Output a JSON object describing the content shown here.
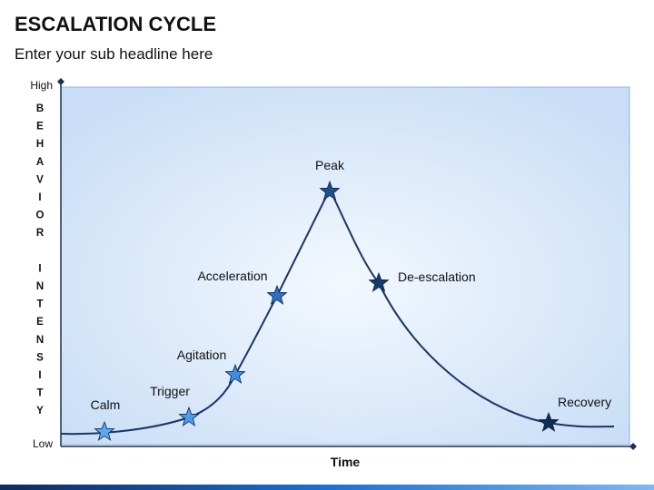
{
  "header": {
    "title": "ESCALATION CYCLE",
    "subtitle": "Enter your sub headline here"
  },
  "axes": {
    "y_high": "High",
    "y_low": "Low",
    "y_label": "BEHAVIOR INTENSITY",
    "x_label": "Time"
  },
  "stages": [
    {
      "label": "Calm",
      "color": "#5aaaf2"
    },
    {
      "label": "Trigger",
      "color": "#4c9ceb"
    },
    {
      "label": "Agitation",
      "color": "#3f8de2"
    },
    {
      "label": "Acceleration",
      "color": "#2c71c6"
    },
    {
      "label": "Peak",
      "color": "#1f4f8e"
    },
    {
      "label": "De-escalation",
      "color": "#173b6c"
    },
    {
      "label": "Recovery",
      "color": "#112c52"
    }
  ]
}
